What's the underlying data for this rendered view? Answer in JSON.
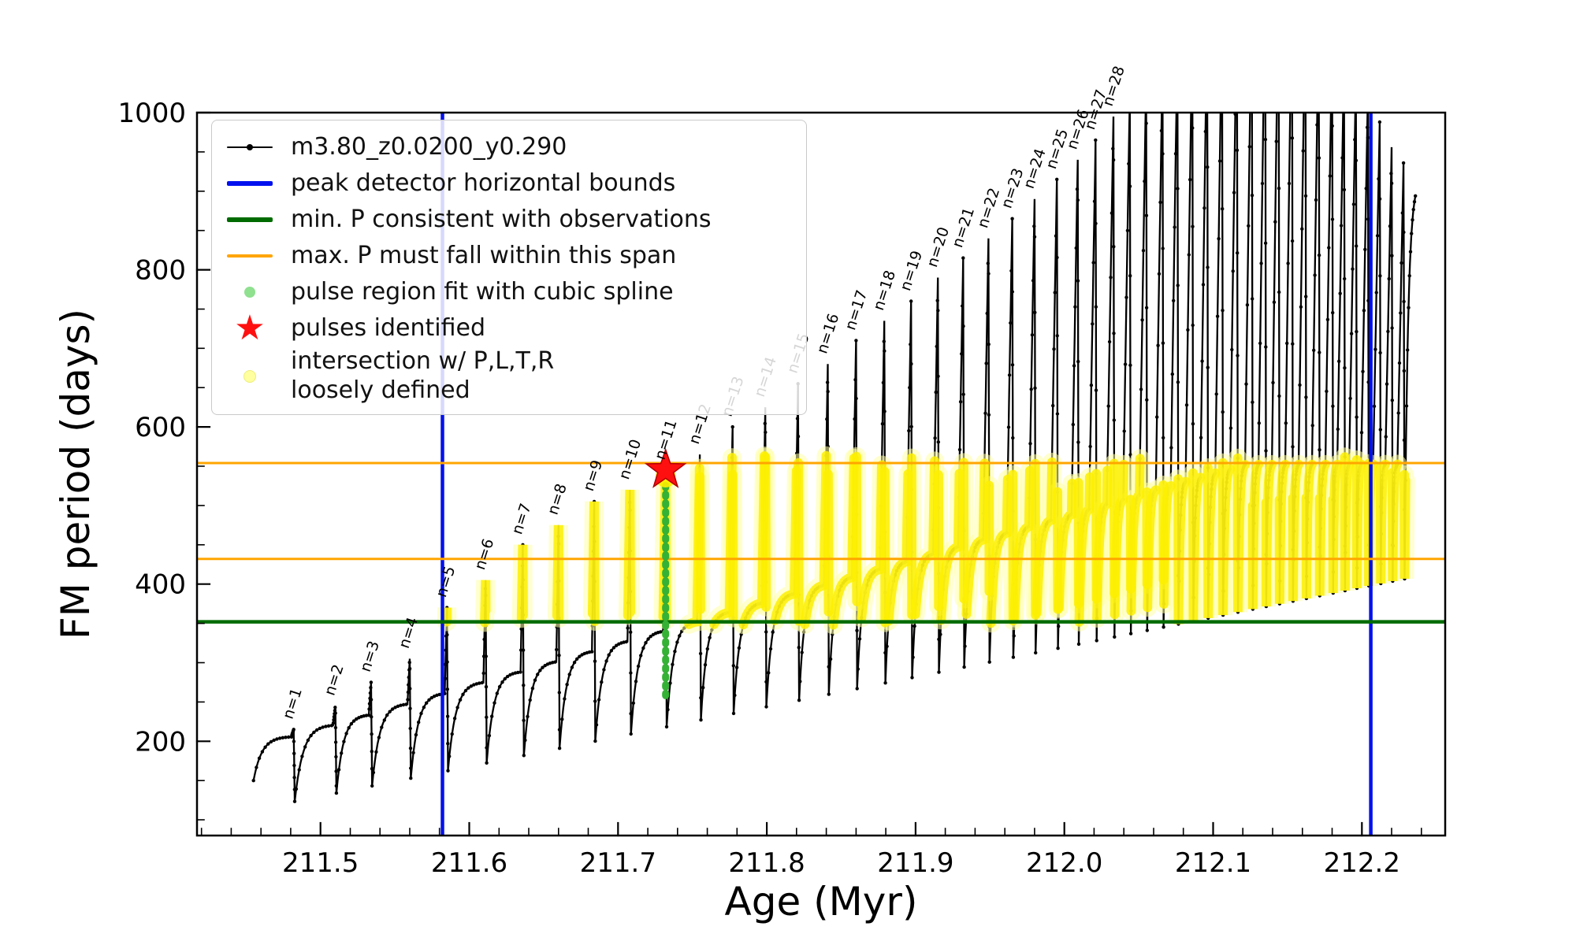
{
  "axes": {
    "xlabel": "Age (Myr)",
    "ylabel": "FM period (days)",
    "xlim": [
      211.417,
      212.256
    ],
    "ylim": [
      80,
      1000
    ],
    "xticks": {
      "values": [
        211.5,
        211.6,
        211.7,
        211.8,
        211.9,
        212.0,
        212.1,
        212.2
      ],
      "labels": [
        "211.5",
        "211.6",
        "211.7",
        "211.8",
        "211.9",
        "212.0",
        "212.1",
        "212.2"
      ],
      "minor_step": 0.02
    },
    "yticks": {
      "values": [
        200,
        400,
        600,
        800,
        1000
      ],
      "labels": [
        "200",
        "400",
        "600",
        "800",
        "1000"
      ],
      "minor_step": 50
    }
  },
  "icons": {
    "star": "★"
  },
  "colors": {
    "series": "#000000",
    "peak_bounds": "#0010ee",
    "min_p_line": "#006b00",
    "max_p_span": "#ffa500",
    "spline_fit": "#35b135",
    "pulse_star": "#ff1010",
    "intersection": "#fdf000"
  },
  "legend": {
    "items": [
      {
        "label": "m3.80_z0.0200_y0.290",
        "marker": "line-dot",
        "color": "#000000"
      },
      {
        "label": "peak detector horizontal bounds",
        "marker": "line",
        "color": "#0010ee"
      },
      {
        "label": "min. P consistent with observations",
        "marker": "line",
        "color": "#006b00"
      },
      {
        "label": "max. P must fall within this span",
        "marker": "line",
        "color": "#ffa500"
      },
      {
        "label": "pulse region fit with cubic spline",
        "marker": "dot",
        "color": "#90ee90"
      },
      {
        "label": "pulses identified",
        "marker": "star",
        "color": "#ff1010"
      },
      {
        "label": "intersection w/ P,L,T,R\nloosely defined",
        "marker": "dot",
        "color": "#ffffa0"
      }
    ]
  },
  "chart_data": {
    "type": "line",
    "title": "",
    "xlabel": "Age (Myr)",
    "ylabel": "FM period (days)",
    "xlim": [
      211.417,
      212.256
    ],
    "ylim": [
      80,
      1000
    ],
    "series_name": "m3.80_z0.0200_y0.290",
    "series_start": {
      "x": 211.455,
      "y": 150
    },
    "series_end": {
      "x": 212.236,
      "y": 905
    },
    "pulses": [
      {
        "n": 1,
        "label": "n=1",
        "x": 211.482,
        "peak": 215
      },
      {
        "n": 2,
        "label": "n=2",
        "x": 211.51,
        "peak": 245
      },
      {
        "n": 3,
        "label": "n=3",
        "x": 211.534,
        "peak": 275
      },
      {
        "n": 4,
        "label": "n=4",
        "x": 211.56,
        "peak": 305
      },
      {
        "n": 5,
        "label": "n=5",
        "x": 211.585,
        "peak": 370
      },
      {
        "n": 6,
        "label": "n=6",
        "x": 211.611,
        "peak": 405
      },
      {
        "n": 7,
        "label": "n=7",
        "x": 211.636,
        "peak": 450
      },
      {
        "n": 8,
        "label": "n=8",
        "x": 211.66,
        "peak": 475
      },
      {
        "n": 9,
        "label": "n=9",
        "x": 211.684,
        "peak": 505
      },
      {
        "n": 10,
        "label": "n=10",
        "x": 211.708,
        "peak": 520
      },
      {
        "n": 11,
        "label": "n=11",
        "x": 211.732,
        "peak": 545
      },
      {
        "n": 12,
        "label": "n=12",
        "x": 211.755,
        "peak": 565
      },
      {
        "n": 13,
        "label": "n=13",
        "x": 211.777,
        "peak": 600
      },
      {
        "n": 14,
        "label": "n=14",
        "x": 211.799,
        "peak": 625
      },
      {
        "n": 15,
        "label": "n=15",
        "x": 211.821,
        "peak": 655
      },
      {
        "n": 16,
        "label": "n=16",
        "x": 211.841,
        "peak": 680
      },
      {
        "n": 17,
        "label": "n=17",
        "x": 211.86,
        "peak": 710
      },
      {
        "n": 18,
        "label": "n=18",
        "x": 211.879,
        "peak": 735
      },
      {
        "n": 19,
        "label": "n=19",
        "x": 211.897,
        "peak": 760
      },
      {
        "n": 20,
        "label": "n=20",
        "x": 211.915,
        "peak": 790
      },
      {
        "n": 21,
        "label": "n=21",
        "x": 211.932,
        "peak": 815
      },
      {
        "n": 22,
        "label": "n=22",
        "x": 211.949,
        "peak": 840
      },
      {
        "n": 23,
        "label": "n=23",
        "x": 211.965,
        "peak": 865
      },
      {
        "n": 24,
        "label": "n=24",
        "x": 211.98,
        "peak": 890
      },
      {
        "n": 25,
        "label": "n=25",
        "x": 211.995,
        "peak": 915
      },
      {
        "n": 26,
        "label": "n=26",
        "x": 212.009,
        "peak": 940
      },
      {
        "n": 27,
        "label": "n=27",
        "x": 212.021,
        "peak": 965
      },
      {
        "n": 28,
        "label": "n=28",
        "x": 212.033,
        "peak": 995
      }
    ],
    "extra_pulses": [
      {
        "x": 212.044,
        "peak": 1020
      },
      {
        "x": 212.055,
        "peak": 1045
      },
      {
        "x": 212.066,
        "peak": 1068
      },
      {
        "x": 212.076,
        "peak": 1088
      },
      {
        "x": 212.086,
        "peak": 1106
      },
      {
        "x": 212.096,
        "peak": 1122
      },
      {
        "x": 212.106,
        "peak": 1136
      },
      {
        "x": 212.116,
        "peak": 1148
      },
      {
        "x": 212.126,
        "peak": 1158
      },
      {
        "x": 212.135,
        "peak": 1164
      },
      {
        "x": 212.144,
        "peak": 1168
      },
      {
        "x": 212.153,
        "peak": 1164
      },
      {
        "x": 212.162,
        "peak": 1150
      },
      {
        "x": 212.171,
        "peak": 1128
      },
      {
        "x": 212.18,
        "peak": 1102
      },
      {
        "x": 212.188,
        "peak": 1072
      },
      {
        "x": 212.196,
        "peak": 1048
      },
      {
        "x": 212.204,
        "peak": 1020
      },
      {
        "x": 212.212,
        "peak": 988
      },
      {
        "x": 212.22,
        "peak": 956
      },
      {
        "x": 212.228,
        "peak": 936
      }
    ],
    "envelope": {
      "trough_start": 115,
      "trough_slope": 380,
      "trough_x0": 211.46,
      "base_start": 205,
      "base_slope": 540,
      "base_x0": 211.48,
      "base_cap": 554
    },
    "reference_lines": {
      "blue_vertical_x": [
        211.582,
        212.206
      ],
      "green_horizontal_y": 352,
      "orange_horizontal_y": [
        432,
        554
      ]
    },
    "pulse_identified": {
      "x": 211.732,
      "y": 545
    },
    "spline_region": {
      "x": 211.732,
      "y_min": 258,
      "y_max": 528
    },
    "yellow_band": {
      "y_min": 348,
      "y_max": 564
    }
  }
}
